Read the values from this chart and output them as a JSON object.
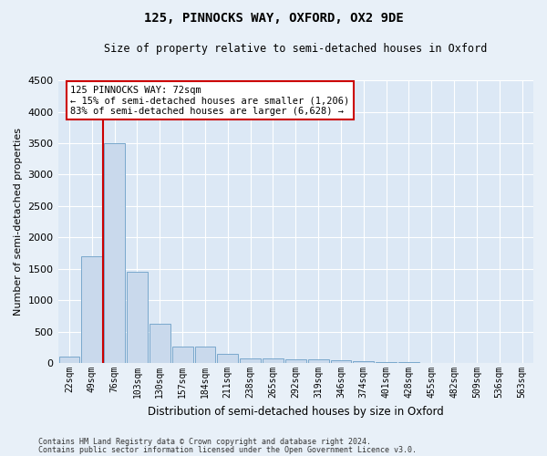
{
  "title": "125, PINNOCKS WAY, OXFORD, OX2 9DE",
  "subtitle": "Size of property relative to semi-detached houses in Oxford",
  "xlabel": "Distribution of semi-detached houses by size in Oxford",
  "ylabel": "Number of semi-detached properties",
  "footnote1": "Contains HM Land Registry data © Crown copyright and database right 2024.",
  "footnote2": "Contains public sector information licensed under the Open Government Licence v3.0.",
  "bar_color": "#c9d9ec",
  "bar_edge_color": "#7aa8cc",
  "bg_color": "#e8f0f8",
  "plot_bg_color": "#dce8f5",
  "grid_color": "#ffffff",
  "annotation_box_color": "#ffffff",
  "annotation_border_color": "#cc0000",
  "red_line_color": "#cc0000",
  "categories": [
    "22sqm",
    "49sqm",
    "76sqm",
    "103sqm",
    "130sqm",
    "157sqm",
    "184sqm",
    "211sqm",
    "238sqm",
    "265sqm",
    "292sqm",
    "319sqm",
    "346sqm",
    "374sqm",
    "401sqm",
    "428sqm",
    "455sqm",
    "482sqm",
    "509sqm",
    "536sqm",
    "563sqm"
  ],
  "values": [
    100,
    1700,
    3500,
    1450,
    620,
    260,
    260,
    140,
    80,
    80,
    60,
    55,
    45,
    35,
    20,
    10,
    8,
    5,
    3,
    2,
    1
  ],
  "ylim": [
    0,
    4500
  ],
  "yticks": [
    0,
    500,
    1000,
    1500,
    2000,
    2500,
    3000,
    3500,
    4000,
    4500
  ],
  "red_line_bin_index": 2,
  "annotation_text_line1": "125 PINNOCKS WAY: 72sqm",
  "annotation_text_line2": "← 15% of semi-detached houses are smaller (1,206)",
  "annotation_text_line3": "83% of semi-detached houses are larger (6,628) →"
}
